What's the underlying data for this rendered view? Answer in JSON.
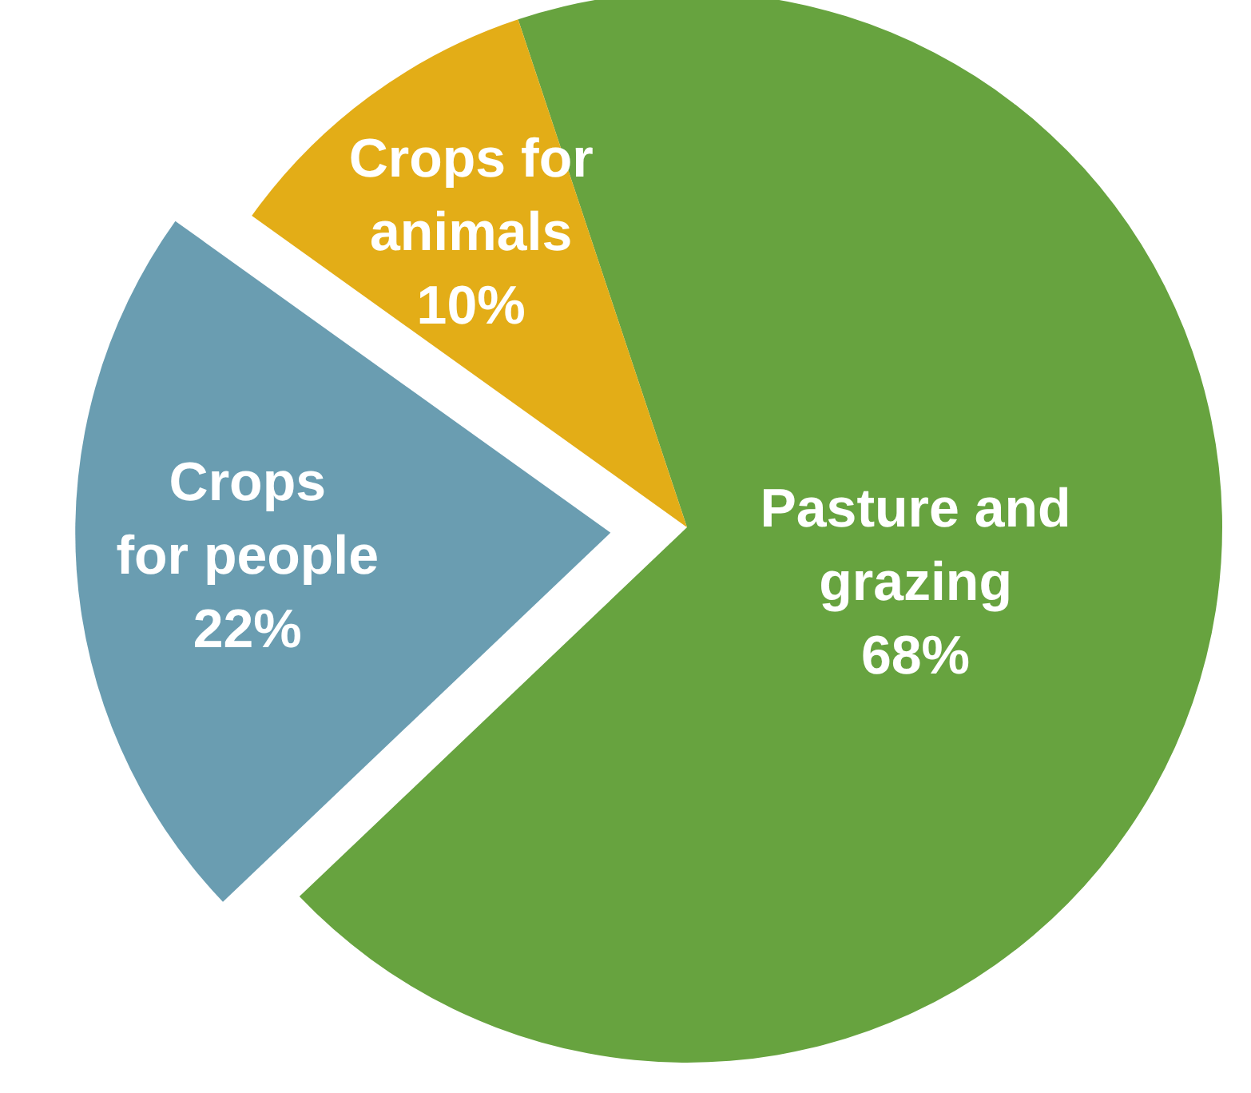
{
  "chart_data": {
    "type": "pie",
    "categories": [
      "Pasture and grazing",
      "Crops for people",
      "Crops for animals"
    ],
    "values": [
      68,
      22,
      10
    ],
    "colors": [
      "#67a33f",
      "#6a9db1",
      "#e3ad17"
    ],
    "value_labels": [
      "68%",
      "22%",
      "10%"
    ]
  }
}
